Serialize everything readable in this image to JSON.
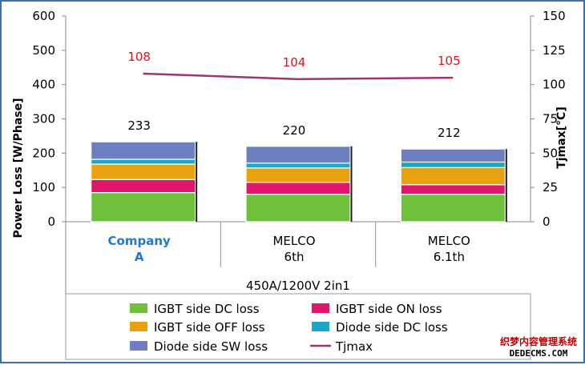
{
  "chart_data": {
    "type": "bar",
    "stacked": true,
    "categories": [
      {
        "lines": [
          "Company",
          "A"
        ],
        "highlight": true
      },
      {
        "lines": [
          "MELCO",
          "6th"
        ],
        "highlight": false
      },
      {
        "lines": [
          "MELCO",
          "6.1th"
        ],
        "highlight": false
      }
    ],
    "group_label": "450A/1200V 2in1",
    "ylabel": "Power Loss [W/Phase]",
    "y2label": "Tjmax[°C]",
    "ylim": [
      0,
      600
    ],
    "y2lim": [
      0,
      150
    ],
    "yticks": [
      "0",
      "100",
      "200",
      "300",
      "400",
      "500",
      "600"
    ],
    "y2ticks": [
      "0",
      "25",
      "50",
      "75",
      "100",
      "125",
      "150"
    ],
    "series": [
      {
        "name": "IGBT side DC loss",
        "color": "#6fc13c",
        "values": [
          85,
          80,
          80
        ]
      },
      {
        "name": "IGBT side ON loss",
        "color": "#e0156b",
        "values": [
          38,
          35,
          28
        ]
      },
      {
        "name": "IGBT side OFF loss",
        "color": "#e8a20f",
        "values": [
          45,
          42,
          50
        ]
      },
      {
        "name": "Diode side DC loss",
        "color": "#1aa6c8",
        "values": [
          14,
          14,
          16
        ]
      },
      {
        "name": "Diode side SW loss",
        "color": "#6c7fc0",
        "values": [
          51,
          49,
          38
        ]
      }
    ],
    "totals": [
      "233",
      "220",
      "212"
    ],
    "line_series": {
      "name": "Tjmax",
      "color": "#a2336e",
      "values": [
        108,
        104,
        105
      ],
      "labels": [
        "108",
        "104",
        "105"
      ]
    },
    "grid": false,
    "legend_position": "bottom"
  },
  "watermark": {
    "line1": "织梦内容管理系统",
    "line2": "DEDECMS.COM"
  }
}
